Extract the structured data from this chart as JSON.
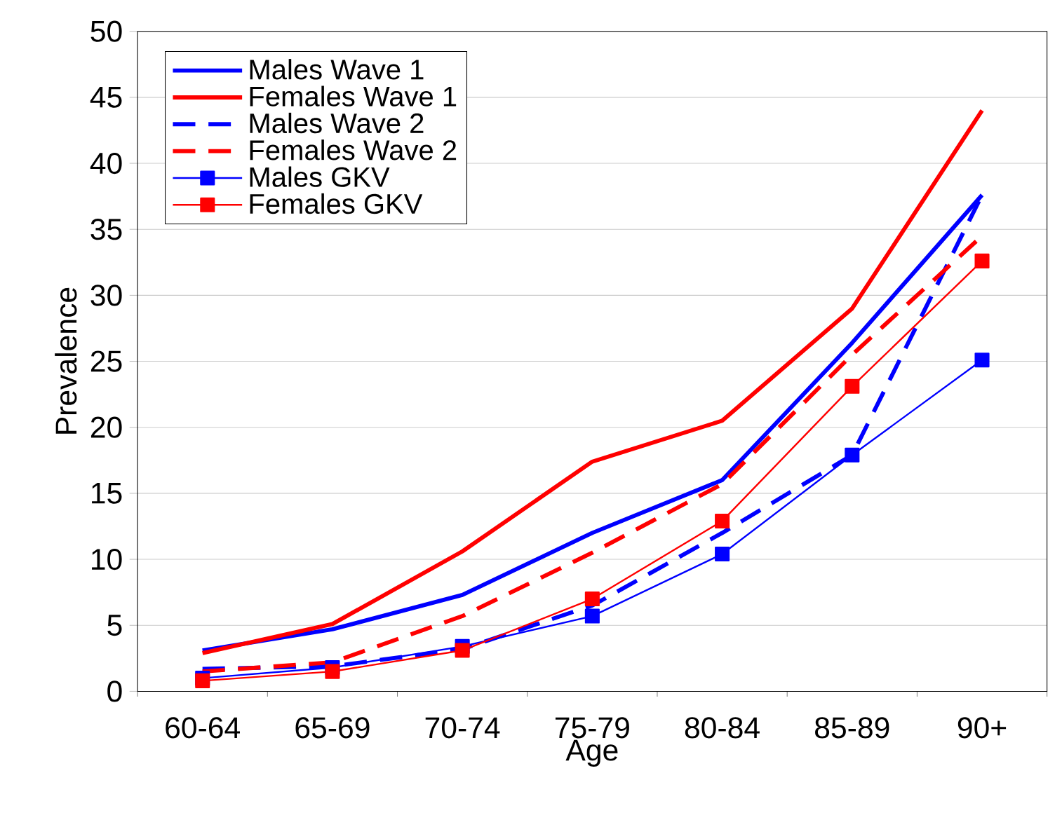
{
  "chart_data": {
    "type": "line",
    "xlabel": "Age",
    "ylabel": "Prevalence",
    "categories": [
      "60-64",
      "65-69",
      "70-74",
      "75-79",
      "80-84",
      "85-89",
      "90+"
    ],
    "ylim": [
      0,
      50
    ],
    "yticks": [
      0,
      5,
      10,
      15,
      20,
      25,
      30,
      35,
      40,
      45,
      50
    ],
    "grid": "y",
    "legend": "top left",
    "series": [
      {
        "name": "Males Wave 1",
        "color": "#0000ff",
        "line_style": "solid",
        "marker": "none",
        "values": [
          3.1,
          4.7,
          7.3,
          12.0,
          16.0,
          26.4,
          37.6
        ]
      },
      {
        "name": "Females Wave 1",
        "color": "#ff0000",
        "line_style": "solid",
        "marker": "none",
        "values": [
          2.9,
          5.1,
          10.6,
          17.4,
          20.5,
          29.0,
          44.0
        ]
      },
      {
        "name": "Males Wave 2",
        "color": "#0000ff",
        "line_style": "dashed",
        "marker": "none",
        "values": [
          1.7,
          1.9,
          3.2,
          6.5,
          12.0,
          17.9,
          37.6
        ]
      },
      {
        "name": "Females Wave 2",
        "color": "#ff0000",
        "line_style": "dashed",
        "marker": "none",
        "values": [
          1.5,
          2.2,
          5.7,
          10.5,
          15.7,
          25.5,
          34.5
        ]
      },
      {
        "name": "Males GKV",
        "color": "#0000ff",
        "line_style": "solid",
        "marker": "square",
        "values": [
          1.0,
          1.8,
          3.4,
          5.7,
          10.4,
          17.9,
          25.1
        ]
      },
      {
        "name": "Females GKV",
        "color": "#ff0000",
        "line_style": "solid",
        "marker": "square",
        "values": [
          0.8,
          1.5,
          3.1,
          7.0,
          12.9,
          23.1,
          32.6
        ]
      }
    ]
  }
}
